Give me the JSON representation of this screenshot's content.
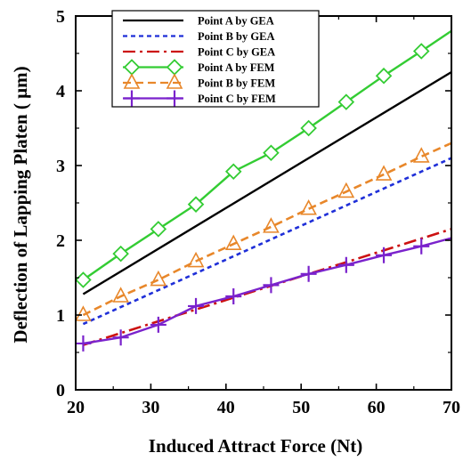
{
  "chart_data": {
    "type": "line",
    "xlabel": "Induced Attract Force (Nt)",
    "ylabel": "Deflection of Lapping Platen ( μm)",
    "xlim": [
      20,
      70
    ],
    "ylim": [
      0,
      5
    ],
    "xticks": [
      "20",
      "30",
      "40",
      "50",
      "60",
      "70"
    ],
    "yticks": [
      "0",
      "1",
      "2",
      "3",
      "4",
      "5"
    ],
    "grid": false,
    "legend_position": "top-left",
    "series": [
      {
        "name": "Point A by GEA",
        "color": "#000000",
        "style": "solid",
        "marker": "none",
        "x": [
          21,
          70
        ],
        "y": [
          1.28,
          4.25
        ]
      },
      {
        "name": "Point B by GEA",
        "color": "#1f2fd8",
        "style": "dotted",
        "marker": "none",
        "x": [
          21,
          70
        ],
        "y": [
          0.88,
          3.1
        ]
      },
      {
        "name": "Point C by GEA",
        "color": "#cc1111",
        "style": "dashdot",
        "marker": "none",
        "x": [
          21,
          70
        ],
        "y": [
          0.6,
          2.15
        ]
      },
      {
        "name": "Point A by FEM",
        "color": "#33cc33",
        "style": "solid",
        "marker": "diamond",
        "x": [
          21,
          26,
          31,
          36,
          41,
          46,
          51,
          56,
          61,
          66,
          70
        ],
        "y": [
          1.47,
          1.82,
          2.15,
          2.48,
          2.92,
          3.17,
          3.5,
          3.85,
          4.2,
          4.53,
          4.8
        ]
      },
      {
        "name": "Point B by FEM",
        "color": "#e8872a",
        "style": "dashed",
        "marker": "triangle",
        "x": [
          21,
          26,
          31,
          36,
          41,
          46,
          51,
          56,
          61,
          66,
          70
        ],
        "y": [
          1.0,
          1.25,
          1.47,
          1.72,
          1.95,
          2.18,
          2.42,
          2.65,
          2.88,
          3.12,
          3.3
        ]
      },
      {
        "name": "Point C by FEM",
        "color": "#7a22cc",
        "style": "solid",
        "marker": "plus",
        "x": [
          21,
          26,
          31,
          36,
          41,
          46,
          51,
          56,
          61,
          66,
          70
        ],
        "y": [
          0.62,
          0.7,
          0.87,
          1.12,
          1.25,
          1.4,
          1.55,
          1.67,
          1.8,
          1.92,
          2.03
        ]
      }
    ]
  }
}
